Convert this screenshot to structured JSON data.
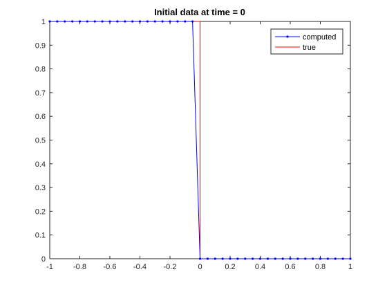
{
  "chart_data": {
    "type": "line",
    "title": "Initial data at time = 0",
    "xlabel": "",
    "ylabel": "",
    "xlim": [
      -1,
      1
    ],
    "ylim": [
      0,
      1
    ],
    "xticks": [
      -1,
      -0.8,
      -0.6,
      -0.4,
      -0.2,
      0,
      0.2,
      0.4,
      0.6,
      0.8,
      1
    ],
    "xtick_labels": [
      "-1",
      "-0.8",
      "-0.6",
      "-0.4",
      "-0.2",
      "0",
      "0.2",
      "0.4",
      "0.6",
      "0.8",
      "1"
    ],
    "yticks": [
      0,
      0.1,
      0.2,
      0.3,
      0.4,
      0.5,
      0.6,
      0.7,
      0.8,
      0.9,
      1
    ],
    "ytick_labels": [
      "0",
      "0.1",
      "0.2",
      "0.3",
      "0.4",
      "0.5",
      "0.6",
      "0.7",
      "0.8",
      "0.9",
      "1"
    ],
    "grid": false,
    "legend_position": "top-right",
    "series": [
      {
        "name": "computed",
        "color": "#0000ff",
        "marker": "dot",
        "x": [
          -1,
          -0.95,
          -0.9,
          -0.85,
          -0.8,
          -0.75,
          -0.7,
          -0.65,
          -0.6,
          -0.55,
          -0.5,
          -0.45,
          -0.4,
          -0.35,
          -0.3,
          -0.25,
          -0.2,
          -0.15,
          -0.1,
          -0.05,
          0,
          0.05,
          0.1,
          0.15,
          0.2,
          0.25,
          0.3,
          0.35,
          0.4,
          0.45,
          0.5,
          0.55,
          0.6,
          0.65,
          0.7,
          0.75,
          0.8,
          0.85,
          0.9,
          0.95,
          1
        ],
        "y": [
          1,
          1,
          1,
          1,
          1,
          1,
          1,
          1,
          1,
          1,
          1,
          1,
          1,
          1,
          1,
          1,
          1,
          1,
          1,
          1,
          0,
          0,
          0,
          0,
          0,
          0,
          0,
          0,
          0,
          0,
          0,
          0,
          0,
          0,
          0,
          0,
          0,
          0,
          0,
          0,
          0
        ]
      },
      {
        "name": "true",
        "color": "#ff0000",
        "marker": "none",
        "x": [
          -1,
          0,
          0,
          1
        ],
        "y": [
          1,
          1,
          0,
          0
        ]
      }
    ]
  }
}
